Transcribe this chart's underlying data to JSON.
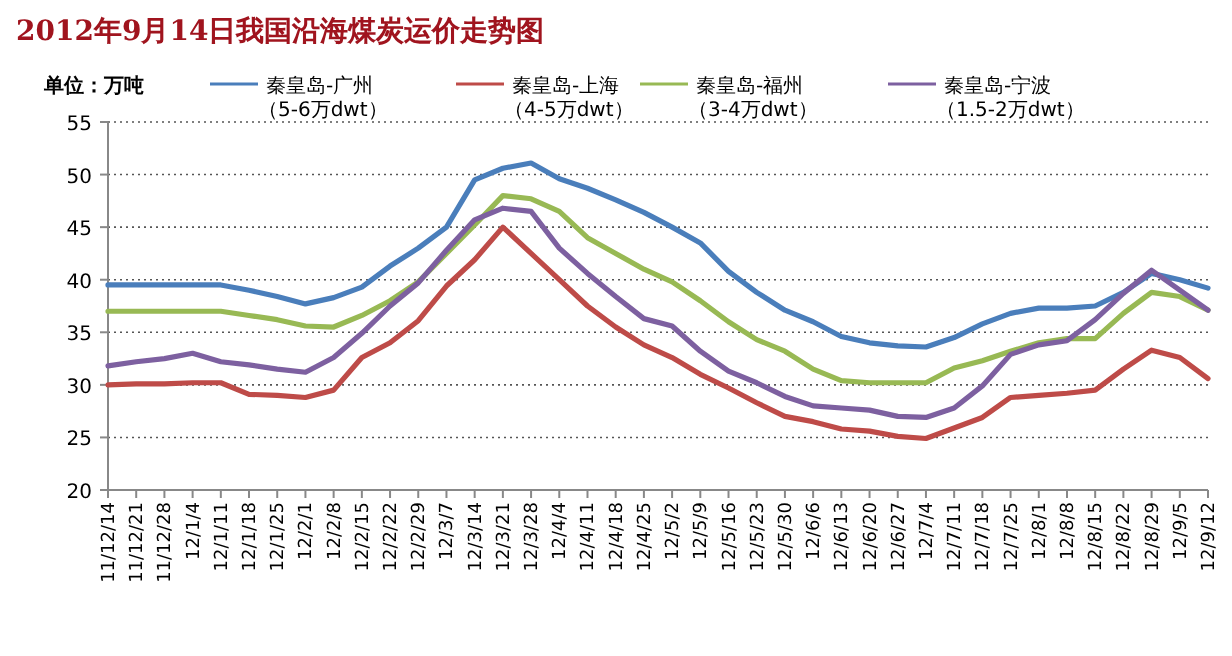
{
  "chart_data": {
    "type": "line",
    "title": "2012年9月14日我国沿海煤炭运价走势图",
    "ylabel": "单位：万吨",
    "categories": [
      "11/12/14",
      "11/12/21",
      "11/12/28",
      "12/1/4",
      "12/1/11",
      "12/1/18",
      "12/1/25",
      "12/2/1",
      "12/2/8",
      "12/2/15",
      "12/2/22",
      "12/2/29",
      "12/3/7",
      "12/3/14",
      "12/3/21",
      "12/3/28",
      "12/4/4",
      "12/4/11",
      "12/4/18",
      "12/4/25",
      "12/5/2",
      "12/5/9",
      "12/5/16",
      "12/5/23",
      "12/5/30",
      "12/6/6",
      "12/6/13",
      "12/6/20",
      "12/6/27",
      "12/7/4",
      "12/7/11",
      "12/7/18",
      "12/7/25",
      "12/8/1",
      "12/8/8",
      "12/8/15",
      "12/8/22",
      "12/8/29",
      "12/9/5",
      "12/9/12"
    ],
    "series": [
      {
        "name": "秦皇岛-广州（5-6万dwt）",
        "color": "#4a7ebb",
        "values": [
          39.5,
          39.5,
          39.5,
          39.5,
          39.5,
          39.0,
          38.4,
          37.7,
          38.3,
          39.3,
          41.3,
          43.0,
          45.0,
          49.5,
          50.6,
          51.1,
          49.6,
          48.7,
          47.6,
          46.4,
          45.0,
          43.5,
          40.8,
          38.8,
          37.1,
          36.0,
          34.6,
          34.0,
          33.7,
          33.6,
          34.5,
          35.8,
          36.8,
          37.3,
          37.3,
          37.5,
          38.8,
          40.6,
          40.0,
          39.2
        ]
      },
      {
        "name": "秦皇岛-上海（4-5万dwt）",
        "color": "#be4b48",
        "values": [
          30.0,
          30.1,
          30.1,
          30.2,
          30.2,
          29.1,
          29.0,
          28.8,
          29.5,
          32.6,
          34.0,
          36.1,
          39.4,
          41.9,
          45.0,
          42.5,
          40.0,
          37.5,
          35.5,
          33.8,
          32.6,
          31.0,
          29.7,
          28.3,
          27.0,
          26.5,
          25.8,
          25.6,
          25.1,
          24.9,
          25.9,
          26.9,
          28.8,
          29.0,
          29.2,
          29.5,
          31.5,
          33.3,
          32.6,
          30.6
        ]
      },
      {
        "name": "秦皇岛-福州（3-4万dwt）",
        "color": "#98b954",
        "values": [
          37.0,
          37.0,
          37.0,
          37.0,
          37.0,
          36.6,
          36.2,
          35.6,
          35.5,
          36.6,
          38.0,
          39.8,
          42.5,
          45.2,
          48.0,
          47.7,
          46.5,
          44.0,
          42.5,
          41.0,
          39.8,
          38.0,
          36.0,
          34.3,
          33.2,
          31.5,
          30.4,
          30.2,
          30.2,
          30.2,
          31.6,
          32.3,
          33.2,
          34.0,
          34.4,
          34.4,
          36.8,
          38.8,
          38.4,
          37.1
        ]
      },
      {
        "name": "秦皇岛-宁波（1.5-2万dwt）",
        "color": "#7d60a0",
        "values": [
          31.8,
          32.2,
          32.5,
          33.0,
          32.2,
          31.9,
          31.5,
          31.2,
          32.6,
          34.9,
          37.5,
          39.7,
          42.8,
          45.7,
          46.8,
          46.5,
          43.0,
          40.6,
          38.4,
          36.3,
          35.6,
          33.2,
          31.3,
          30.2,
          28.9,
          28.0,
          27.8,
          27.6,
          27.0,
          26.9,
          27.8,
          29.9,
          32.9,
          33.8,
          34.2,
          36.2,
          38.7,
          40.9,
          39.0,
          37.1
        ]
      }
    ],
    "ylim": [
      20,
      55
    ],
    "yticks": [
      20,
      25,
      30,
      35,
      40,
      45,
      50,
      55
    ],
    "grid": "y",
    "legend": "top",
    "line_style": "solid",
    "marker": "none"
  }
}
